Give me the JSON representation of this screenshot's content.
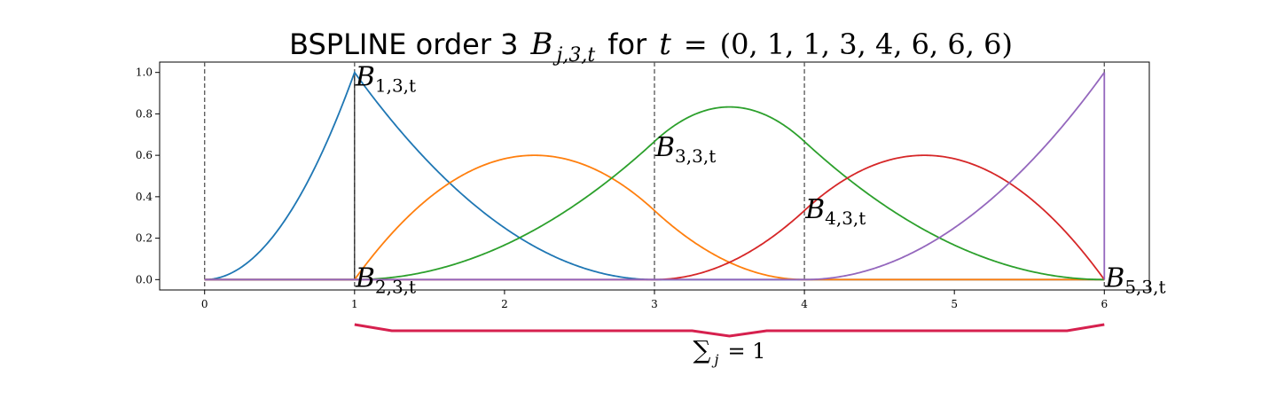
{
  "chart_data": {
    "type": "line",
    "title": {
      "prefix": "BSPLINE order 3",
      "symbol": "B",
      "symbol_sub": "j,3,t",
      "middle": "for",
      "var": "t",
      "equals": "=",
      "knots": "(0, 1, 1, 3, 4, 6, 6, 6)"
    },
    "xlim": [
      -0.3,
      6.3
    ],
    "ylim": [
      -0.05,
      1.05
    ],
    "x_ticks": [
      "0",
      "1",
      "2",
      "3",
      "4",
      "5",
      "6"
    ],
    "y_ticks": [
      "0.0",
      "0.2",
      "0.4",
      "0.6",
      "0.8",
      "1.0"
    ],
    "knot_lines": [
      0,
      1,
      3,
      4,
      6
    ],
    "knots": [
      0,
      1,
      1,
      3,
      4,
      6,
      6,
      6
    ],
    "order": 3,
    "x_range": [
      0,
      6
    ],
    "series": [
      {
        "label_main": "B",
        "label_sub": "1,3,t",
        "color": "#1f77b4",
        "label_pos": [
          1.0,
          0.97
        ],
        "samples": [
          [
            0,
            0
          ],
          [
            0.25,
            0.0625
          ],
          [
            0.5,
            0.25
          ],
          [
            0.75,
            0.5625
          ],
          [
            1,
            1
          ],
          [
            1.5,
            0.5625
          ],
          [
            2,
            0.25
          ],
          [
            2.5,
            0.0625
          ],
          [
            3,
            0
          ],
          [
            6,
            0
          ]
        ]
      },
      {
        "label_main": "B",
        "label_sub": "2,3,t",
        "color": "#ff7f0e",
        "label_pos": [
          1.0,
          0.0
        ],
        "samples": [
          [
            0,
            0
          ],
          [
            1,
            0
          ],
          [
            1.5,
            0.3958
          ],
          [
            2,
            0.5833
          ],
          [
            2.2,
            0.6
          ],
          [
            2.5,
            0.5625
          ],
          [
            3,
            0.3333
          ],
          [
            3.5,
            0.0833
          ],
          [
            4,
            0
          ],
          [
            6,
            0
          ]
        ]
      },
      {
        "label_main": "B",
        "label_sub": "3,3,t",
        "color": "#2ca02c",
        "label_pos": [
          3.0,
          0.63
        ],
        "samples": [
          [
            0,
            0
          ],
          [
            1,
            0
          ],
          [
            2,
            0.1667
          ],
          [
            3,
            0.6667
          ],
          [
            3.5,
            0.8333
          ],
          [
            4,
            0.6667
          ],
          [
            5,
            0.1667
          ],
          [
            6,
            0
          ]
        ]
      },
      {
        "label_main": "B",
        "label_sub": "4,3,t",
        "color": "#d62728",
        "label_pos": [
          4.0,
          0.33
        ],
        "samples": [
          [
            0,
            0
          ],
          [
            3,
            0
          ],
          [
            3.5,
            0.0833
          ],
          [
            4,
            0.3333
          ],
          [
            4.8,
            0.6
          ],
          [
            5,
            0.5833
          ],
          [
            5.5,
            0.3958
          ],
          [
            6,
            0
          ]
        ]
      },
      {
        "label_main": "B",
        "label_sub": "5,3,t",
        "color": "#9467bd",
        "label_pos": [
          6.0,
          0.0
        ],
        "samples": [
          [
            0,
            0
          ],
          [
            4,
            0
          ],
          [
            4.5,
            0.0625
          ],
          [
            5,
            0.25
          ],
          [
            5.5,
            0.5625
          ],
          [
            6,
            1
          ]
        ]
      }
    ],
    "annotation": {
      "text_main": "∑",
      "text_sub": "j",
      "text_rest": "= 1",
      "color": "#d6204e",
      "x_from": 1,
      "x_to": 6
    },
    "grid": false,
    "legend": "none"
  }
}
